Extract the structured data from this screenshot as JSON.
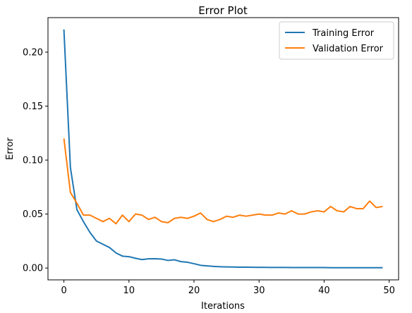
{
  "chart_data": {
    "type": "line",
    "title": "Error Plot",
    "xlabel": "Iterations",
    "ylabel": "Error",
    "xlim": [
      -2.45,
      51.45
    ],
    "ylim": [
      -0.011,
      0.232
    ],
    "x_ticks": [
      0,
      10,
      20,
      30,
      40,
      50
    ],
    "x_tick_labels": [
      "0",
      "10",
      "20",
      "30",
      "40",
      "50"
    ],
    "y_ticks": [
      0.0,
      0.05,
      0.1,
      0.15,
      0.2
    ],
    "y_tick_labels": [
      "0.00",
      "0.05",
      "0.10",
      "0.15",
      "0.20"
    ],
    "grid": false,
    "legend_position": "upper right",
    "x": [
      0,
      1,
      2,
      3,
      4,
      5,
      6,
      7,
      8,
      9,
      10,
      11,
      12,
      13,
      14,
      15,
      16,
      17,
      18,
      19,
      20,
      21,
      22,
      23,
      24,
      25,
      26,
      27,
      28,
      29,
      30,
      31,
      32,
      33,
      34,
      35,
      36,
      37,
      38,
      39,
      40,
      41,
      42,
      43,
      44,
      45,
      46,
      47,
      48,
      49
    ],
    "series": [
      {
        "name": "Training Error",
        "color": "#1f77b4",
        "values": [
          0.221,
          0.093,
          0.054,
          0.043,
          0.033,
          0.025,
          0.022,
          0.019,
          0.014,
          0.011,
          0.0105,
          0.009,
          0.0078,
          0.0085,
          0.0086,
          0.0083,
          0.007,
          0.0076,
          0.0059,
          0.0053,
          0.004,
          0.0025,
          0.002,
          0.0015,
          0.0012,
          0.001,
          0.0009,
          0.0008,
          0.0008,
          0.0007,
          0.0006,
          0.0006,
          0.0005,
          0.0005,
          0.0005,
          0.0004,
          0.0004,
          0.0004,
          0.0004,
          0.0004,
          0.0004,
          0.0003,
          0.0003,
          0.0003,
          0.0003,
          0.0003,
          0.0003,
          0.0003,
          0.0003,
          0.0003
        ]
      },
      {
        "name": "Validation Error",
        "color": "#ff7f0e",
        "values": [
          0.12,
          0.07,
          0.06,
          0.049,
          0.049,
          0.046,
          0.043,
          0.046,
          0.041,
          0.049,
          0.043,
          0.05,
          0.049,
          0.045,
          0.047,
          0.043,
          0.042,
          0.046,
          0.047,
          0.046,
          0.048,
          0.051,
          0.045,
          0.043,
          0.045,
          0.048,
          0.047,
          0.049,
          0.048,
          0.049,
          0.05,
          0.049,
          0.049,
          0.051,
          0.05,
          0.053,
          0.05,
          0.05,
          0.052,
          0.053,
          0.052,
          0.057,
          0.053,
          0.052,
          0.057,
          0.055,
          0.055,
          0.062,
          0.056,
          0.057
        ]
      }
    ]
  }
}
